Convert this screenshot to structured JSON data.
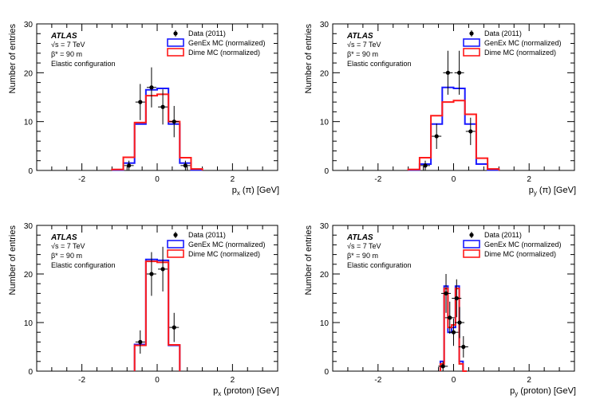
{
  "colors": {
    "genex": "#1a1aff",
    "dime": "#ff1a1a",
    "data": "#000000"
  },
  "chart_data": [
    {
      "type": "histogram",
      "ylabel": "Number of entries",
      "xlabel": "p_x (π) [GeV]",
      "xlabel_main": "p",
      "xlabel_sub": "x",
      "xlabel_rest": " (π) [GeV]",
      "xlim": [
        -3.2,
        3.2
      ],
      "ylim": [
        0,
        30
      ],
      "xticks": [
        -2,
        0,
        2
      ],
      "yticks": [
        0,
        10,
        20,
        30
      ],
      "atlas_label": "ATLAS",
      "energy_label": "√s = 7 TeV",
      "beta_label": "β* = 90 m",
      "config_label": "Elastic configuration",
      "legend": {
        "data": "Data (2011)",
        "genex": "GenEx MC (normalized)",
        "dime": "Dime MC (normalized)"
      },
      "bin_edges": [
        -1.2,
        -0.9,
        -0.6,
        -0.3,
        0.0,
        0.3,
        0.6,
        0.9,
        1.2
      ],
      "genex": [
        0.1,
        1.5,
        9.5,
        16.5,
        16.8,
        9.5,
        1.5,
        0.1
      ],
      "dime": [
        0.2,
        2.7,
        9.8,
        15.3,
        15.6,
        10.0,
        2.6,
        0.3
      ],
      "data": {
        "x": [
          -0.75,
          -0.45,
          -0.15,
          0.15,
          0.45,
          0.75
        ],
        "y": [
          1,
          14,
          17,
          13,
          10,
          1
        ],
        "err": [
          1.0,
          3.7,
          4.1,
          3.6,
          3.2,
          1.0
        ]
      }
    },
    {
      "type": "histogram",
      "ylabel": "Number of entries",
      "xlabel": "p_y (π) [GeV]",
      "xlabel_main": "p",
      "xlabel_sub": "y",
      "xlabel_rest": " (π) [GeV]",
      "xlim": [
        -3.2,
        3.2
      ],
      "ylim": [
        0,
        30
      ],
      "xticks": [
        -2,
        0,
        2
      ],
      "yticks": [
        0,
        10,
        20,
        30
      ],
      "atlas_label": "ATLAS",
      "energy_label": "√s = 7 TeV",
      "beta_label": "β* = 90 m",
      "config_label": "Elastic configuration",
      "legend": {
        "data": "Data (2011)",
        "genex": "GenEx MC (normalized)",
        "dime": "Dime MC (normalized)"
      },
      "bin_edges": [
        -1.2,
        -0.9,
        -0.6,
        -0.3,
        0.0,
        0.3,
        0.6,
        0.9,
        1.2
      ],
      "genex": [
        0.1,
        1.3,
        9.5,
        17.0,
        16.8,
        9.5,
        1.3,
        0.1
      ],
      "dime": [
        0.2,
        2.6,
        11.2,
        14.0,
        14.3,
        11.5,
        2.5,
        0.3
      ],
      "data": {
        "x": [
          -0.75,
          -0.45,
          -0.15,
          0.15,
          0.45
        ],
        "y": [
          1,
          7,
          20,
          20,
          8
        ],
        "err": [
          1.0,
          2.6,
          4.5,
          4.5,
          2.8
        ]
      }
    },
    {
      "type": "histogram",
      "ylabel": "Number of entries",
      "xlabel": "p_x (proton) [GeV]",
      "xlabel_main": "p",
      "xlabel_sub": "x",
      "xlabel_rest": " (proton) [GeV]",
      "xlim": [
        -3.2,
        3.2
      ],
      "ylim": [
        0,
        30
      ],
      "xticks": [
        -2,
        0,
        2
      ],
      "yticks": [
        0,
        10,
        20,
        30
      ],
      "atlas_label": "ATLAS",
      "energy_label": "√s = 7 TeV",
      "beta_label": "β* = 90 m",
      "config_label": "Elastic configuration",
      "legend": {
        "data": "Data (2011)",
        "genex": "GenEx MC (normalized)",
        "dime": "Dime MC (normalized)"
      },
      "bin_edges": [
        -0.6,
        -0.3,
        0.0,
        0.3,
        0.6
      ],
      "genex": [
        5.5,
        23.0,
        22.8,
        5.3
      ],
      "dime": [
        5.3,
        22.6,
        22.4,
        5.4
      ],
      "data": {
        "x": [
          -0.45,
          -0.15,
          0.15,
          0.45
        ],
        "y": [
          6,
          20,
          21,
          9
        ],
        "err": [
          2.4,
          4.5,
          4.6,
          3.0
        ]
      }
    },
    {
      "type": "histogram",
      "ylabel": "Number of entries",
      "xlabel": "p_y (proton) [GeV]",
      "xlabel_main": "p",
      "xlabel_sub": "y",
      "xlabel_rest": " (proton) [GeV]",
      "xlim": [
        -3.2,
        3.2
      ],
      "ylim": [
        0,
        30
      ],
      "xticks": [
        -2,
        0,
        2
      ],
      "yticks": [
        0,
        10,
        20,
        30
      ],
      "atlas_label": "ATLAS",
      "energy_label": "√s = 7 TeV",
      "beta_label": "β* = 90 m",
      "config_label": "Elastic configuration",
      "legend": {
        "data": "Data (2011)",
        "genex": "GenEx MC (normalized)",
        "dime": "Dime MC (normalized)"
      },
      "bin_edges": [
        -0.35,
        -0.25,
        -0.15,
        -0.05,
        0.05,
        0.15,
        0.25,
        0.35
      ],
      "genex": [
        2.0,
        17.5,
        8.0,
        9.0,
        17.5,
        2.0,
        0.0
      ],
      "dime": [
        1.5,
        17.0,
        9.0,
        9.5,
        17.0,
        1.5,
        0.0
      ],
      "data": {
        "x": [
          -0.28,
          -0.2,
          -0.1,
          0.0,
          0.08,
          0.16,
          0.26
        ],
        "y": [
          1,
          16,
          11,
          8,
          15,
          10,
          5
        ],
        "err": [
          1.0,
          4.0,
          3.3,
          2.8,
          3.9,
          3.2,
          2.2
        ]
      }
    }
  ]
}
